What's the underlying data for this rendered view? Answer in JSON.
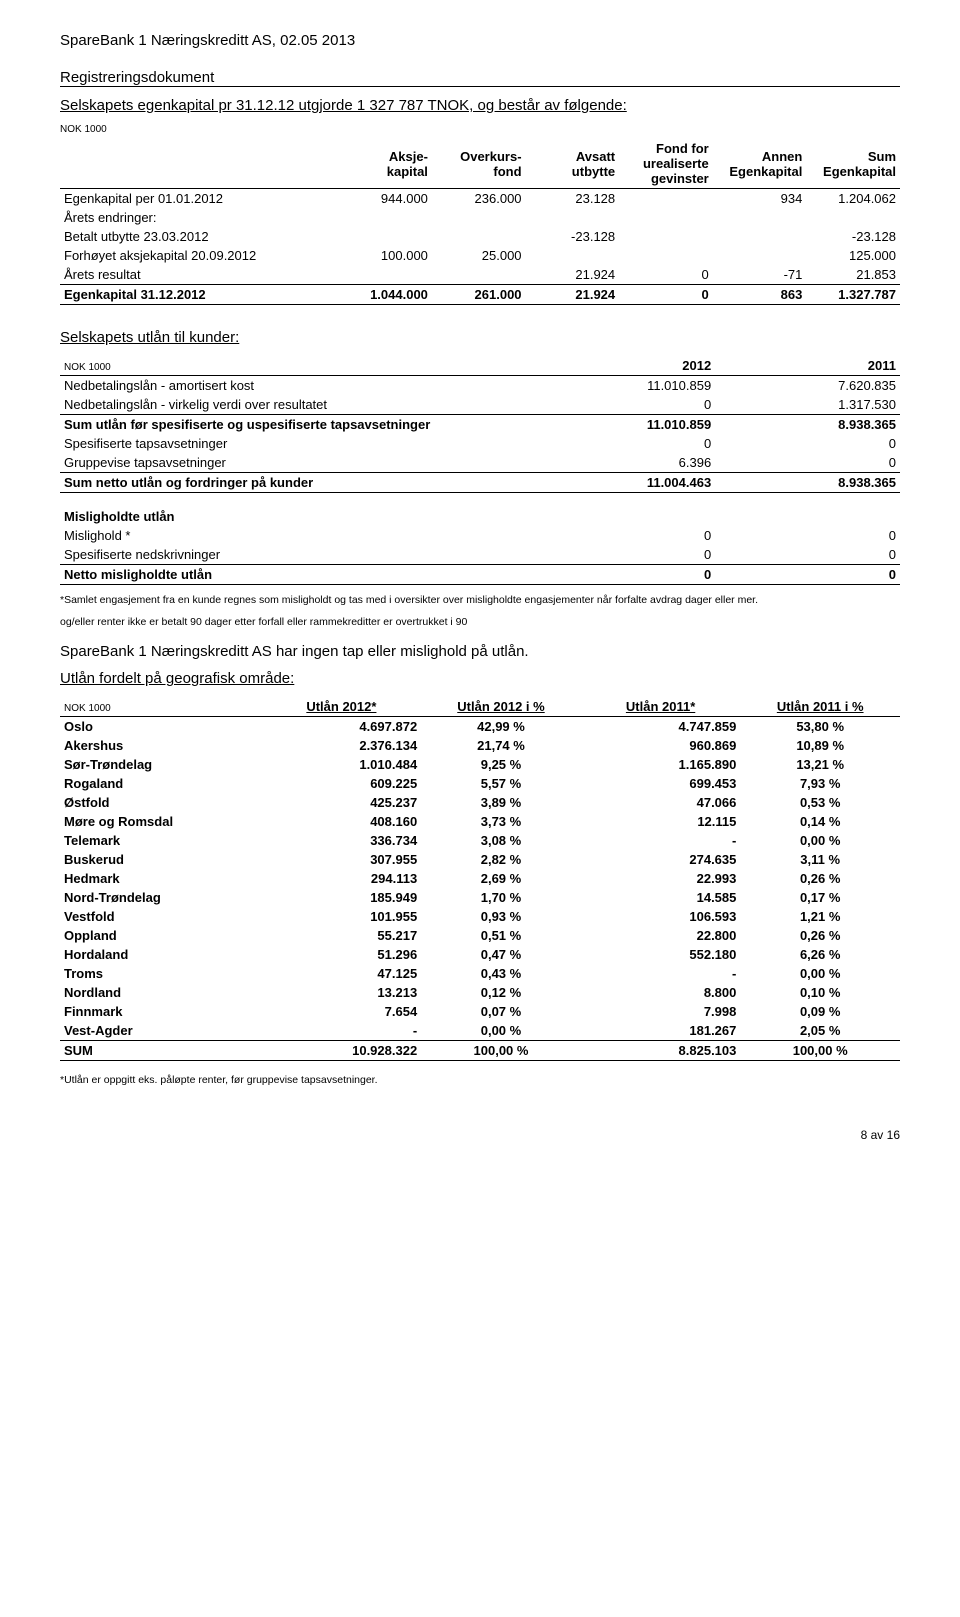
{
  "header": {
    "company_date": "SpareBank 1 Næringskreditt AS, 02.05 2013",
    "doc_type": "Registreringsdokument"
  },
  "equity": {
    "title": "Selskapets egenkapital pr 31.12.12 utgjorde 1 327 787 TNOK, og består av følgende:",
    "nok": "NOK 1000",
    "cols": [
      "",
      "Aksje-\nkapital",
      "Overkurs-\nfond",
      "Avsatt\nutbytte",
      "Fond for\nurealiserte\ngevinster",
      "Annen\nEgenkapital",
      "Sum\nEgenkapital"
    ],
    "rows": [
      {
        "label": "Egenkapital per 01.01.2012",
        "v": [
          "944.000",
          "236.000",
          "23.128",
          "",
          "934",
          "1.204.062"
        ]
      },
      {
        "label": "Årets endringer:",
        "v": [
          "",
          "",
          "",
          "",
          "",
          ""
        ]
      },
      {
        "label": "Betalt utbytte 23.03.2012",
        "v": [
          "",
          "",
          "-23.128",
          "",
          "",
          "-23.128"
        ]
      },
      {
        "label": "Forhøyet aksjekapital 20.09.2012",
        "v": [
          "100.000",
          "25.000",
          "",
          "",
          "",
          "125.000"
        ]
      },
      {
        "label": "Årets resultat",
        "v": [
          "",
          "",
          "21.924",
          "0",
          "-71",
          "21.853"
        ],
        "border_bot": true
      },
      {
        "label": "Egenkapital 31.12.2012",
        "v": [
          "1.044.000",
          "261.000",
          "21.924",
          "0",
          "863",
          "1.327.787"
        ],
        "bold": true,
        "border_bot": true
      }
    ]
  },
  "loans": {
    "title": "Selskapets utlån til kunder:",
    "nok": "NOK 1000",
    "years": [
      "2012",
      "2011"
    ],
    "rows": [
      {
        "label": "Nedbetalingslån - amortisert kost",
        "v": [
          "11.010.859",
          "7.620.835"
        ]
      },
      {
        "label": "Nedbetalingslån - virkelig verdi over resultatet",
        "v": [
          "0",
          "1.317.530"
        ],
        "border_bot": true
      },
      {
        "label": "Sum utlån før spesifiserte og uspesifiserte tapsavsetninger",
        "v": [
          "11.010.859",
          "8.938.365"
        ],
        "bold": true
      },
      {
        "label": "Spesifiserte tapsavsetninger",
        "v": [
          "0",
          "0"
        ]
      },
      {
        "label": "Gruppevise tapsavsetninger",
        "v": [
          "6.396",
          "0"
        ],
        "border_bot": true
      },
      {
        "label": "Sum netto utlån og fordringer på kunder",
        "v": [
          "11.004.463",
          "8.938.365"
        ],
        "bold": true,
        "border_bot": true
      }
    ],
    "default_hdr": "Misligholdte utlån",
    "default_rows": [
      {
        "label": "Mislighold *",
        "v": [
          "0",
          "0"
        ]
      },
      {
        "label": "Spesifiserte nedskrivninger",
        "v": [
          "0",
          "0"
        ],
        "border_bot": true
      },
      {
        "label": "Netto misligholdte utlån",
        "v": [
          "0",
          "0"
        ],
        "bold": true,
        "border_bot": true
      }
    ],
    "note1": "*Samlet engasjement fra en kunde regnes som misligholdt og tas med i oversikter over misligholdte engasjementer når forfalte avdrag dager eller mer.",
    "note2": "og/eller renter ikke er betalt 90 dager etter forfall eller rammekreditter er overtrukket i 90",
    "body": "SpareBank 1 Næringskreditt AS har ingen tap eller mislighold på utlån."
  },
  "geo": {
    "title": "Utlån fordelt på geografisk område:",
    "nok": "NOK 1000",
    "cols": [
      "",
      "Utlån 2012*",
      "Utlån 2012 i %",
      "Utlån 2011*",
      "Utlån 2011 i %"
    ],
    "rows": [
      {
        "label": "Oslo",
        "v": [
          "4.697.872",
          "42,99 %",
          "4.747.859",
          "53,80 %"
        ]
      },
      {
        "label": "Akershus",
        "v": [
          "2.376.134",
          "21,74 %",
          "960.869",
          "10,89 %"
        ]
      },
      {
        "label": "Sør-Trøndelag",
        "v": [
          "1.010.484",
          "9,25 %",
          "1.165.890",
          "13,21 %"
        ]
      },
      {
        "label": "Rogaland",
        "v": [
          "609.225",
          "5,57 %",
          "699.453",
          "7,93 %"
        ]
      },
      {
        "label": "Østfold",
        "v": [
          "425.237",
          "3,89 %",
          "47.066",
          "0,53 %"
        ]
      },
      {
        "label": "Møre og Romsdal",
        "v": [
          "408.160",
          "3,73 %",
          "12.115",
          "0,14 %"
        ]
      },
      {
        "label": "Telemark",
        "v": [
          "336.734",
          "3,08 %",
          "-",
          "0,00 %"
        ]
      },
      {
        "label": "Buskerud",
        "v": [
          "307.955",
          "2,82 %",
          "274.635",
          "3,11 %"
        ]
      },
      {
        "label": "Hedmark",
        "v": [
          "294.113",
          "2,69 %",
          "22.993",
          "0,26 %"
        ]
      },
      {
        "label": "Nord-Trøndelag",
        "v": [
          "185.949",
          "1,70 %",
          "14.585",
          "0,17 %"
        ]
      },
      {
        "label": "Vestfold",
        "v": [
          "101.955",
          "0,93 %",
          "106.593",
          "1,21 %"
        ]
      },
      {
        "label": "Oppland",
        "v": [
          "55.217",
          "0,51 %",
          "22.800",
          "0,26 %"
        ]
      },
      {
        "label": "Hordaland",
        "v": [
          "51.296",
          "0,47 %",
          "552.180",
          "6,26 %"
        ]
      },
      {
        "label": "Troms",
        "v": [
          "47.125",
          "0,43 %",
          "-",
          "0,00 %"
        ]
      },
      {
        "label": "Nordland",
        "v": [
          "13.213",
          "0,12 %",
          "8.800",
          "0,10 %"
        ]
      },
      {
        "label": "Finnmark",
        "v": [
          "7.654",
          "0,07 %",
          "7.998",
          "0,09 %"
        ]
      },
      {
        "label": "Vest-Agder",
        "v": [
          "-",
          "0,00 %",
          "181.267",
          "2,05 %"
        ],
        "border_bot": true
      },
      {
        "label": "SUM",
        "v": [
          "10.928.322",
          "100,00 %",
          "8.825.103",
          "100,00 %"
        ],
        "bold": true,
        "border_bot": true
      }
    ],
    "note": "*Utlån er oppgitt eks. påløpte renter, før gruppevise tapsavsetninger."
  },
  "footer": "8 av 16"
}
